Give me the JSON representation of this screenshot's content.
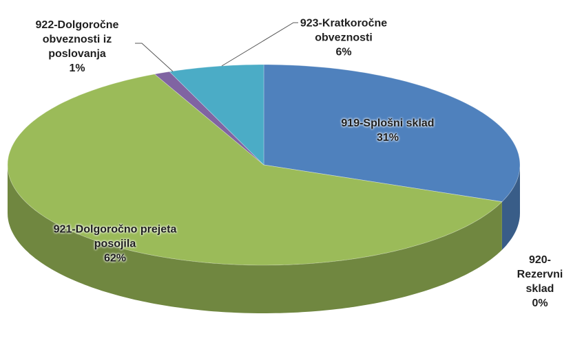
{
  "chart_data": {
    "type": "pie",
    "categories": [
      "919-Splošni sklad",
      "920-Rezervni sklad",
      "921-Dolgoročno prejeta posojila",
      "922-Dolgoročne obveznosti iz poslovanja",
      "923-Kratkoročne obveznosti"
    ],
    "values": [
      31,
      0,
      62,
      1,
      6
    ],
    "value_labels": [
      "31%",
      "0%",
      "62%",
      "1%",
      "6%"
    ],
    "colors": [
      "#4f81bd",
      "#c0504d",
      "#9bbb59",
      "#8064a2",
      "#4bacc6"
    ]
  }
}
